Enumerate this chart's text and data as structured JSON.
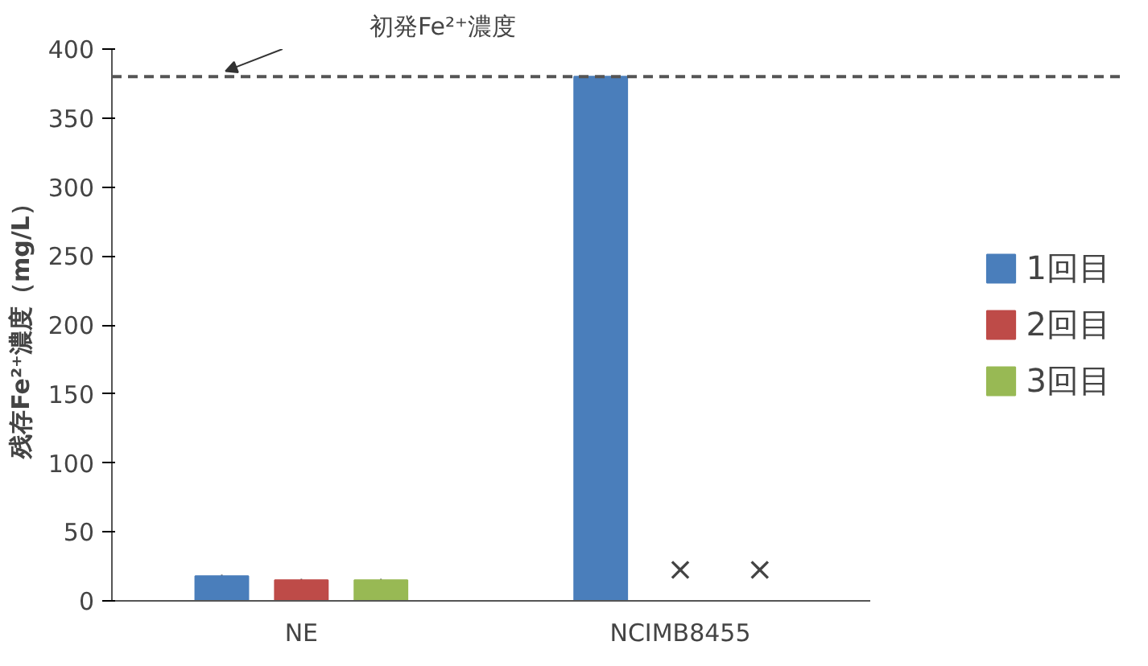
{
  "chart_data": {
    "type": "bar",
    "ylabel": "残存Fe²⁺濃度（mg/L）",
    "categories": [
      "NE",
      "NCIMB8455"
    ],
    "series": [
      {
        "name": "1回目",
        "color": "#4a7ebb",
        "values": [
          18,
          380
        ],
        "errors": [
          1,
          null
        ]
      },
      {
        "name": "2回目",
        "color": "#be4b48",
        "values": [
          15,
          null
        ],
        "errors": [
          1,
          null
        ]
      },
      {
        "name": "3回目",
        "color": "#98b954",
        "values": [
          15,
          null
        ],
        "errors": [
          1,
          null
        ]
      }
    ],
    "annotations": [
      "×",
      "×"
    ],
    "ref_lines": [
      {
        "axis": "y",
        "value": 380,
        "label": "初発Fe²⁺濃度",
        "color": "#555555",
        "line_style": "dashed"
      }
    ],
    "ylim": [
      0,
      400
    ],
    "yticks": [
      0,
      50,
      100,
      150,
      200,
      250,
      300,
      350,
      400
    ],
    "grid": false,
    "legend": "right"
  }
}
